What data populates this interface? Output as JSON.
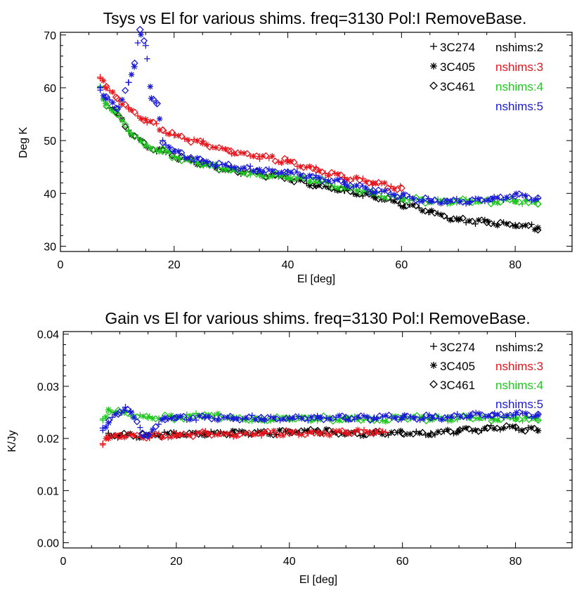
{
  "chart_data": [
    {
      "type": "scatter",
      "title": "Tsys vs El for various shims. freq=3130 Pol:I RemoveBase.",
      "xlabel": "El [deg]",
      "ylabel": "Deg K",
      "xlim": [
        0,
        90
      ],
      "ylim": [
        29,
        70.5
      ],
      "xticks": [
        0,
        20,
        40,
        60,
        80
      ],
      "yticks": [
        30,
        40,
        50,
        60,
        70
      ],
      "grid": false,
      "legend_position": "top-right",
      "legend_sources": [
        {
          "symbol": "plus",
          "label": "3C274"
        },
        {
          "symbol": "asterisk",
          "label": "3C405"
        },
        {
          "symbol": "diamond",
          "label": "3C461"
        }
      ],
      "legend_series": [
        {
          "label": "nshims:2",
          "color": "#000000"
        },
        {
          "label": "nshims:3",
          "color": "#e8141c"
        },
        {
          "label": "nshims:4",
          "color": "#1ec81e"
        },
        {
          "label": "nshims:5",
          "color": "#1a1ad8"
        }
      ],
      "series": [
        {
          "name": "nshims:2",
          "color": "#000000",
          "x": [
            7,
            8,
            10,
            12,
            15,
            18,
            20,
            25,
            30,
            35,
            40,
            45,
            50,
            55,
            60,
            65,
            70,
            75,
            80,
            84
          ],
          "y": [
            60,
            57,
            55,
            52,
            49,
            48,
            47,
            45.5,
            44.5,
            43.5,
            43,
            41.5,
            40.5,
            39.5,
            38,
            36.5,
            35,
            34.5,
            34,
            33.5
          ]
        },
        {
          "name": "nshims:3",
          "color": "#e8141c",
          "x": [
            7,
            8,
            10,
            12,
            15,
            18,
            20,
            25,
            30,
            35,
            40,
            45,
            50,
            55,
            60
          ],
          "y": [
            62,
            60,
            58,
            56,
            54,
            52,
            51,
            49.5,
            48,
            47,
            46,
            44.5,
            43,
            42,
            41
          ]
        },
        {
          "name": "nshims:4",
          "color": "#1ec81e",
          "x": [
            7,
            8,
            10,
            12,
            15,
            18,
            20,
            25,
            30,
            35,
            40,
            45,
            50,
            55,
            60,
            65,
            68,
            72,
            76,
            80,
            84
          ],
          "y": [
            60,
            57,
            55,
            52,
            49,
            48,
            47,
            45.5,
            44.5,
            43.5,
            43,
            42.5,
            41,
            40,
            39,
            38.5,
            38.5,
            38.5,
            38.5,
            38.5,
            38
          ]
        },
        {
          "name": "nshims:5",
          "color": "#1a1ad8",
          "x": [
            7,
            8,
            10,
            12,
            13,
            14,
            15,
            16,
            17,
            18,
            20,
            25,
            30,
            35,
            40,
            45,
            50,
            55,
            60,
            65,
            68,
            72,
            76,
            80,
            84
          ],
          "y": [
            60,
            58,
            56,
            61,
            64,
            71,
            68,
            58,
            57,
            50,
            48,
            46,
            45,
            44.5,
            44,
            43,
            42,
            40.5,
            39.5,
            38.5,
            38.5,
            38.5,
            39,
            39.5,
            39
          ]
        }
      ]
    },
    {
      "type": "scatter",
      "title": "Gain vs El for various shims. freq=3130 Pol:I RemoveBase.",
      "xlabel": "El [deg]",
      "ylabel": "K/Jy",
      "xlim": [
        0,
        90
      ],
      "ylim": [
        -0.001,
        0.0405
      ],
      "xticks": [
        0,
        20,
        40,
        60,
        80
      ],
      "yticks": [
        "0.00",
        "0.01",
        "0.02",
        "0.03",
        "0.04"
      ],
      "grid": false,
      "legend_position": "top-right",
      "legend_sources": [
        {
          "symbol": "plus",
          "label": "3C274"
        },
        {
          "symbol": "asterisk",
          "label": "3C405"
        },
        {
          "symbol": "diamond",
          "label": "3C461"
        }
      ],
      "legend_series": [
        {
          "label": "nshims:2",
          "color": "#000000"
        },
        {
          "label": "nshims:3",
          "color": "#e8141c"
        },
        {
          "label": "nshims:4",
          "color": "#1ec81e"
        },
        {
          "label": "nshims:5",
          "color": "#1a1ad8"
        }
      ],
      "series": [
        {
          "name": "nshims:2",
          "color": "#000000",
          "x": [
            8,
            10,
            15,
            20,
            25,
            30,
            35,
            40,
            45,
            50,
            55,
            60,
            65,
            70,
            75,
            80,
            84
          ],
          "y": [
            0.021,
            0.0205,
            0.0205,
            0.021,
            0.021,
            0.021,
            0.0212,
            0.0212,
            0.0215,
            0.021,
            0.021,
            0.021,
            0.021,
            0.0215,
            0.022,
            0.022,
            0.0215
          ]
        },
        {
          "name": "nshims:3",
          "color": "#e8141c",
          "x": [
            7,
            8,
            10,
            15,
            20,
            25,
            30,
            35,
            40,
            45,
            50,
            55,
            57
          ],
          "y": [
            0.019,
            0.02,
            0.0205,
            0.0205,
            0.0205,
            0.021,
            0.0208,
            0.021,
            0.021,
            0.021,
            0.0212,
            0.0212,
            0.0212
          ]
        },
        {
          "name": "nshims:4",
          "color": "#1ec81e",
          "x": [
            7,
            8,
            10,
            15,
            20,
            25,
            30,
            35,
            40,
            45,
            50,
            55,
            60,
            65,
            68,
            72,
            76,
            80,
            84
          ],
          "y": [
            0.0235,
            0.0255,
            0.025,
            0.024,
            0.024,
            0.0245,
            0.024,
            0.0235,
            0.0238,
            0.0238,
            0.0238,
            0.0235,
            0.024,
            0.0238,
            0.0238,
            0.024,
            0.0238,
            0.0238,
            0.0235
          ]
        },
        {
          "name": "nshims:5",
          "color": "#1a1ad8",
          "x": [
            7,
            8,
            10,
            11,
            12,
            14,
            15,
            18,
            20,
            25,
            30,
            35,
            40,
            45,
            50,
            55,
            60,
            65,
            68,
            72,
            76,
            80,
            84
          ],
          "y": [
            0.022,
            0.023,
            0.025,
            0.026,
            0.025,
            0.021,
            0.0205,
            0.024,
            0.024,
            0.024,
            0.0238,
            0.024,
            0.0238,
            0.024,
            0.024,
            0.024,
            0.024,
            0.024,
            0.024,
            0.0245,
            0.0245,
            0.0245,
            0.0245
          ]
        }
      ]
    }
  ]
}
